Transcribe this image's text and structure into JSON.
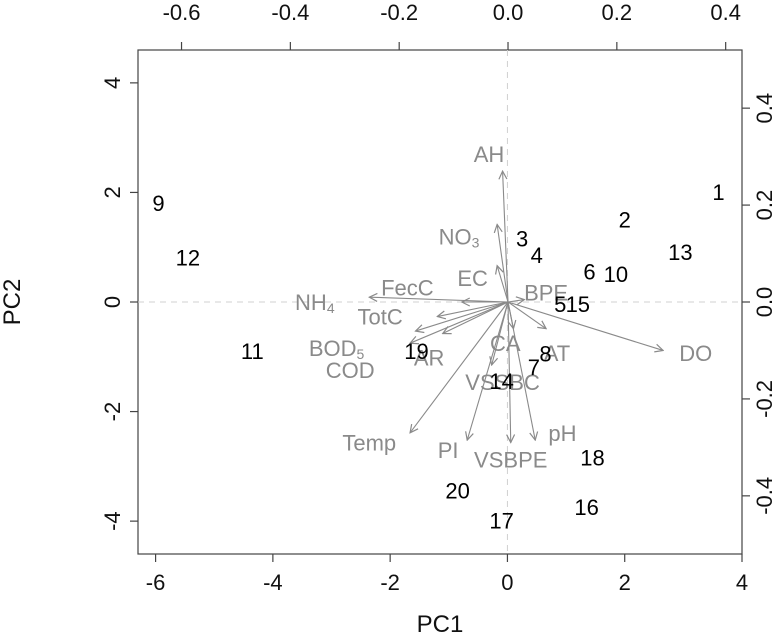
{
  "chart_data": {
    "type": "scatter",
    "subtype": "biplot",
    "xlabel": "PC1",
    "ylabel": "PC2",
    "bottom_axis": {
      "range": [
        -6.3,
        4.0
      ],
      "ticks": [
        "-6",
        "-4",
        "-2",
        "0",
        "2",
        "4"
      ]
    },
    "left_axis": {
      "range": [
        -4.6,
        4.6
      ],
      "ticks": [
        "-4",
        "-2",
        "0",
        "2",
        "4"
      ]
    },
    "top_axis": {
      "range": [
        -0.68,
        0.43
      ],
      "ticks": [
        "-0.6",
        "-0.4",
        "-0.2",
        "0.0",
        "0.2",
        "0.4"
      ]
    },
    "right_axis": {
      "range": [
        -0.52,
        0.52
      ],
      "ticks": [
        "-0.4",
        "-0.2",
        "0.0",
        "0.2",
        "0.4"
      ]
    },
    "grid": false,
    "reference_lines": "dashed at x=0 and y=0",
    "colors": {
      "observations": "#000000",
      "variables": "#8a8a8a",
      "reference": "#d0d0d0"
    },
    "observations": [
      {
        "label": "1",
        "x": 3.6,
        "y": 2.0
      },
      {
        "label": "2",
        "x": 2.0,
        "y": 1.5
      },
      {
        "label": "3",
        "x": 0.25,
        "y": 1.15
      },
      {
        "label": "4",
        "x": 0.5,
        "y": 0.85
      },
      {
        "label": "5",
        "x": 0.9,
        "y": -0.05
      },
      {
        "label": "6",
        "x": 1.4,
        "y": 0.55
      },
      {
        "label": "7",
        "x": 0.45,
        "y": -1.2
      },
      {
        "label": "8",
        "x": 0.65,
        "y": -0.95
      },
      {
        "label": "9",
        "x": -5.95,
        "y": 1.8
      },
      {
        "label": "10",
        "x": 1.85,
        "y": 0.5
      },
      {
        "label": "11",
        "x": -4.35,
        "y": -0.9
      },
      {
        "label": "12",
        "x": -5.45,
        "y": 0.8
      },
      {
        "label": "13",
        "x": 2.95,
        "y": 0.9
      },
      {
        "label": "14",
        "x": -0.1,
        "y": -1.45
      },
      {
        "label": "15",
        "x": 1.2,
        "y": -0.05
      },
      {
        "label": "16",
        "x": 1.35,
        "y": -3.75
      },
      {
        "label": "17",
        "x": -0.1,
        "y": -4.0
      },
      {
        "label": "18",
        "x": 1.45,
        "y": -2.85
      },
      {
        "label": "19",
        "x": -1.55,
        "y": -0.9
      },
      {
        "label": "20",
        "x": -0.85,
        "y": -3.45
      }
    ],
    "loadings": [
      {
        "label": "AH",
        "x": -0.01,
        "y": 0.27,
        "label_x": -0.035,
        "label_y": 0.305
      },
      {
        "label": "NO",
        "sub": "3",
        "x": -0.02,
        "y": 0.16,
        "label_x": -0.09,
        "label_y": 0.135
      },
      {
        "label": "EC",
        "x": -0.02,
        "y": 0.075,
        "label_x": -0.065,
        "label_y": 0.05
      },
      {
        "label": "FecC",
        "x": -0.085,
        "y": 0.0,
        "label_x": -0.185,
        "label_y": 0.03
      },
      {
        "label": "NH",
        "sub": "4",
        "x": -0.255,
        "y": 0.01,
        "label_x": -0.355,
        "label_y": 0.0
      },
      {
        "label": "TotC",
        "x": -0.13,
        "y": -0.03,
        "label_x": -0.235,
        "label_y": -0.03
      },
      {
        "label": "BOD",
        "sub": "5",
        "x": -0.17,
        "y": -0.06,
        "label_x": -0.315,
        "label_y": -0.095
      },
      {
        "label": "COD",
        "x": -0.18,
        "y": -0.085,
        "label_x": -0.29,
        "label_y": -0.14
      },
      {
        "label": "AR",
        "x": -0.12,
        "y": -0.065,
        "label_x": -0.145,
        "label_y": -0.115
      },
      {
        "label": "BPE",
        "x": 0.03,
        "y": 0.005,
        "label_x": 0.07,
        "label_y": 0.02
      },
      {
        "label": "CA",
        "x": 0.01,
        "y": -0.055,
        "label_x": -0.005,
        "label_y": -0.085
      },
      {
        "label": "AT",
        "x": 0.07,
        "y": -0.055,
        "label_x": 0.09,
        "label_y": -0.105
      },
      {
        "label": "DO",
        "x": 0.285,
        "y": -0.1,
        "label_x": 0.345,
        "label_y": -0.105
      },
      {
        "label": "VSSBC",
        "x": -0.03,
        "y": -0.13,
        "label_x": -0.01,
        "label_y": -0.165
      },
      {
        "label": "Temp",
        "x": -0.18,
        "y": -0.27,
        "label_x": -0.255,
        "label_y": -0.29
      },
      {
        "label": "PI",
        "x": -0.075,
        "y": -0.285,
        "label_x": -0.11,
        "label_y": -0.305
      },
      {
        "label": "VSBPE",
        "x": 0.005,
        "y": -0.29,
        "label_x": 0.005,
        "label_y": -0.325
      },
      {
        "label": "pH",
        "x": 0.05,
        "y": -0.285,
        "label_x": 0.1,
        "label_y": -0.27
      }
    ]
  }
}
